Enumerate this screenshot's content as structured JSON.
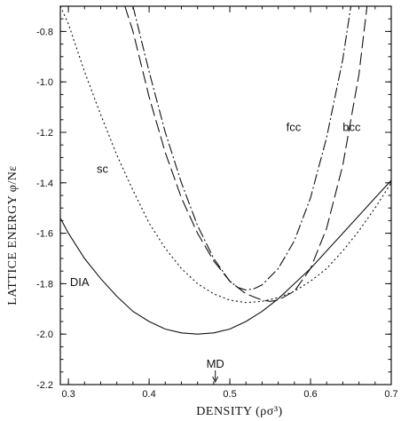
{
  "chart_data": {
    "type": "line",
    "xlabel": "DENSITY (ρσ³)",
    "ylabel": "LATTICE ENERGY  φ/Nε",
    "xlim": [
      0.29,
      0.7
    ],
    "ylim": [
      -2.2,
      -0.7
    ],
    "xticks": [
      0.3,
      0.4,
      0.5,
      0.6,
      0.7
    ],
    "xtick_labels": [
      "0.3",
      "0.4",
      "0.5",
      "0.6",
      "0.7"
    ],
    "yticks": [
      -2.2,
      -2.0,
      -1.8,
      -1.6,
      -1.4,
      -1.2,
      -1.0,
      -0.8
    ],
    "ytick_labels": [
      "-2.2",
      "-2.0",
      "-1.8",
      "-1.6",
      "-1.4",
      "-1.2",
      "-1.0",
      "-0.8"
    ],
    "grid": false,
    "series": [
      {
        "name": "DIA",
        "style": "solid",
        "x": [
          0.29,
          0.3,
          0.32,
          0.34,
          0.36,
          0.38,
          0.4,
          0.42,
          0.44,
          0.46,
          0.48,
          0.5,
          0.52,
          0.54,
          0.56,
          0.58,
          0.6,
          0.62,
          0.64,
          0.66,
          0.68,
          0.7
        ],
        "y": [
          -1.54,
          -1.6,
          -1.7,
          -1.78,
          -1.85,
          -1.91,
          -1.95,
          -1.98,
          -1.995,
          -2.0,
          -1.995,
          -1.98,
          -1.95,
          -1.91,
          -1.86,
          -1.8,
          -1.74,
          -1.67,
          -1.6,
          -1.53,
          -1.46,
          -1.39
        ]
      },
      {
        "name": "sc",
        "style": "dotted",
        "x": [
          0.29,
          0.3,
          0.32,
          0.34,
          0.36,
          0.38,
          0.4,
          0.42,
          0.44,
          0.46,
          0.48,
          0.5,
          0.52,
          0.54,
          0.56,
          0.58,
          0.6,
          0.62,
          0.64,
          0.66,
          0.68,
          0.7
        ],
        "y": [
          -0.7,
          -0.77,
          -0.96,
          -1.13,
          -1.29,
          -1.43,
          -1.56,
          -1.66,
          -1.74,
          -1.8,
          -1.84,
          -1.865,
          -1.875,
          -1.87,
          -1.855,
          -1.83,
          -1.79,
          -1.74,
          -1.67,
          -1.59,
          -1.5,
          -1.4
        ]
      },
      {
        "name": "fcc",
        "style": "dash-dot",
        "x": [
          0.38,
          0.4,
          0.42,
          0.44,
          0.46,
          0.48,
          0.5,
          0.51,
          0.52,
          0.53,
          0.54,
          0.56,
          0.58,
          0.6,
          0.62,
          0.64,
          0.65
        ],
        "y": [
          -0.7,
          -0.96,
          -1.2,
          -1.4,
          -1.57,
          -1.7,
          -1.79,
          -1.815,
          -1.825,
          -1.82,
          -1.805,
          -1.74,
          -1.63,
          -1.46,
          -1.22,
          -0.91,
          -0.7
        ]
      },
      {
        "name": "bcc",
        "style": "long-dash",
        "x": [
          0.37,
          0.38,
          0.4,
          0.42,
          0.44,
          0.46,
          0.48,
          0.5,
          0.52,
          0.54,
          0.55,
          0.56,
          0.58,
          0.6,
          0.62,
          0.64,
          0.66,
          0.67
        ],
        "y": [
          -0.7,
          -0.8,
          -1.06,
          -1.28,
          -1.46,
          -1.6,
          -1.71,
          -1.79,
          -1.84,
          -1.865,
          -1.87,
          -1.865,
          -1.83,
          -1.74,
          -1.58,
          -1.33,
          -0.97,
          -0.7
        ]
      }
    ],
    "annotations": [
      {
        "text": "MD",
        "x": 0.482,
        "arrow": "down"
      }
    ]
  }
}
